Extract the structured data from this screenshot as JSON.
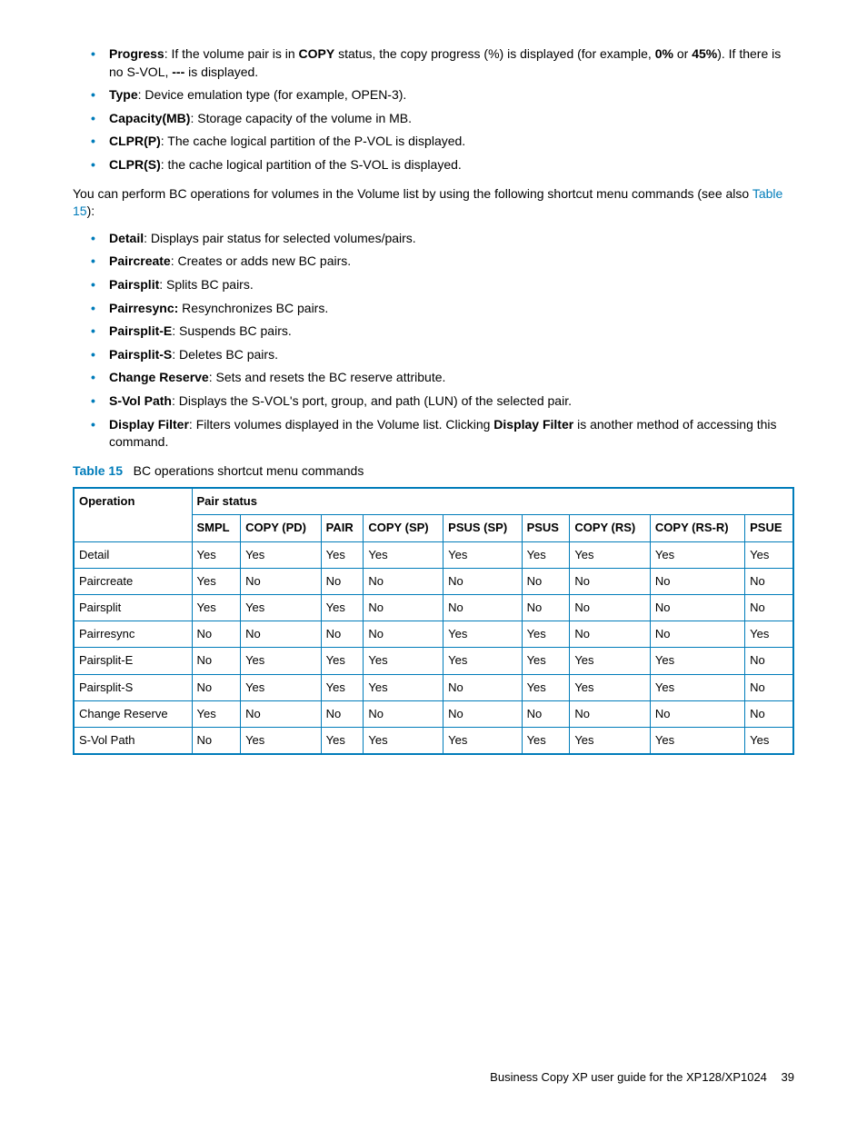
{
  "list1": [
    {
      "term": "Progress",
      "text1": ": If the volume pair is in ",
      "term2": "COPY",
      "text2": " status, the copy progress (%) is displayed (for example, ",
      "term3": "0%",
      "text3": " or ",
      "term4": "45%",
      "text4": "). If there is no S-VOL, ",
      "term5": "---",
      "text5": " is displayed."
    },
    {
      "term": "Type",
      "text1": ": Device emulation type (for example, OPEN-3)."
    },
    {
      "term": "Capacity(MB)",
      "text1": ": Storage capacity of the volume in MB."
    },
    {
      "term": "CLPR(P)",
      "text1": ": The cache logical partition of the P-VOL is displayed."
    },
    {
      "term": "CLPR(S)",
      "text1": ": the cache logical partition of the S-VOL is displayed."
    }
  ],
  "para1_a": "You can perform BC operations for volumes in the Volume list by using the following shortcut menu commands (see also ",
  "para1_link": "Table 15",
  "para1_b": "):",
  "list2": [
    {
      "term": "Detail",
      "text1": ": Displays pair status for selected volumes/pairs."
    },
    {
      "term": "Paircreate",
      "text1": ": Creates or adds new BC pairs."
    },
    {
      "term": "Pairsplit",
      "text1": ": Splits BC pairs."
    },
    {
      "term": "Pairresync:",
      "text1": " Resynchronizes BC pairs."
    },
    {
      "term": "Pairsplit-E",
      "text1": ": Suspends BC pairs."
    },
    {
      "term": "Pairsplit-S",
      "text1": ": Deletes BC pairs."
    },
    {
      "term": "Change Reserve",
      "text1": ": Sets and resets the BC reserve attribute."
    },
    {
      "term": "S-Vol Path",
      "text1": ": Displays the S-VOL's port, group, and path (LUN) of the selected pair."
    },
    {
      "term": "Display Filter",
      "text1": ": Filters volumes displayed in the Volume list. Clicking ",
      "term2": "Display Filter",
      "text2": " is another method of accessing this command."
    }
  ],
  "table_caption_label": "Table 15",
  "table_caption_text": "BC operations shortcut menu commands",
  "table": {
    "header_operation": "Operation",
    "header_pairstatus": "Pair status",
    "columns": [
      "SMPL",
      "COPY (PD)",
      "PAIR",
      "COPY (SP)",
      "PSUS (SP)",
      "PSUS",
      "COPY (RS)",
      "COPY (RS-R)",
      "PSUE"
    ],
    "rows": [
      {
        "op": "Detail",
        "v": [
          "Yes",
          "Yes",
          "Yes",
          "Yes",
          "Yes",
          "Yes",
          "Yes",
          "Yes",
          "Yes"
        ]
      },
      {
        "op": "Paircreate",
        "v": [
          "Yes",
          "No",
          "No",
          "No",
          "No",
          "No",
          "No",
          "No",
          "No"
        ]
      },
      {
        "op": "Pairsplit",
        "v": [
          "Yes",
          "Yes",
          "Yes",
          "No",
          "No",
          "No",
          "No",
          "No",
          "No"
        ]
      },
      {
        "op": "Pairresync",
        "v": [
          "No",
          "No",
          "No",
          "No",
          "Yes",
          "Yes",
          "No",
          "No",
          "Yes"
        ]
      },
      {
        "op": "Pairsplit-E",
        "v": [
          "No",
          "Yes",
          "Yes",
          "Yes",
          "Yes",
          "Yes",
          "Yes",
          "Yes",
          "No"
        ]
      },
      {
        "op": "Pairsplit-S",
        "v": [
          "No",
          "Yes",
          "Yes",
          "Yes",
          "No",
          "Yes",
          "Yes",
          "Yes",
          "No"
        ]
      },
      {
        "op": "Change Reserve",
        "v": [
          "Yes",
          "No",
          "No",
          "No",
          "No",
          "No",
          "No",
          "No",
          "No"
        ]
      },
      {
        "op": "S-Vol Path",
        "v": [
          "No",
          "Yes",
          "Yes",
          "Yes",
          "Yes",
          "Yes",
          "Yes",
          "Yes",
          "Yes"
        ]
      }
    ]
  },
  "footer_text": "Business Copy XP user guide for the XP128/XP1024",
  "footer_page": "39"
}
